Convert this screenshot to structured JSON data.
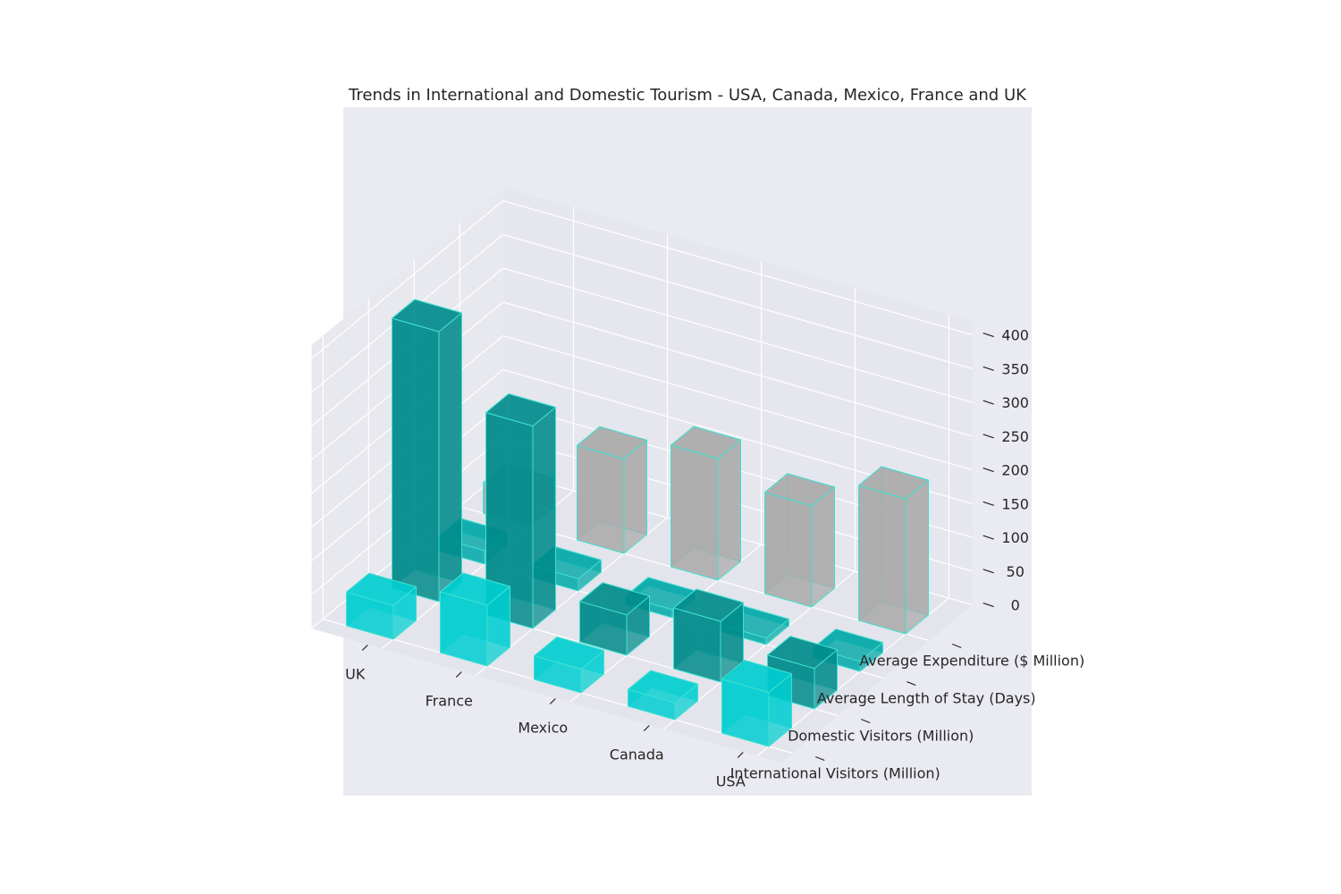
{
  "chart_data": {
    "type": "bar3d",
    "title": "Trends in International and Domestic Tourism - USA, Canada, Mexico, France and UK",
    "categories": [
      "USA",
      "Canada",
      "Mexico",
      "France",
      "UK"
    ],
    "metrics": [
      "International Visitors (Million)",
      "Domestic Visitors (Million)",
      "Average Length of Stay (Days)",
      "Average Expenditure ($ Million)"
    ],
    "values": [
      [
        80,
        60,
        15,
        200
      ],
      [
        25,
        90,
        10,
        150
      ],
      [
        35,
        60,
        12,
        180
      ],
      [
        90,
        300,
        18,
        140
      ],
      [
        50,
        400,
        20,
        45
      ]
    ],
    "zticks": [
      0,
      50,
      100,
      150,
      200,
      250,
      300,
      350,
      400
    ],
    "zlim": [
      0,
      400
    ],
    "colors": [
      "#00CED1",
      "#008B8B",
      "#00a8a8",
      "#A9A9A9",
      "#006461"
    ],
    "edge_color": "#40E0D0",
    "background": "#EAEAF2"
  }
}
